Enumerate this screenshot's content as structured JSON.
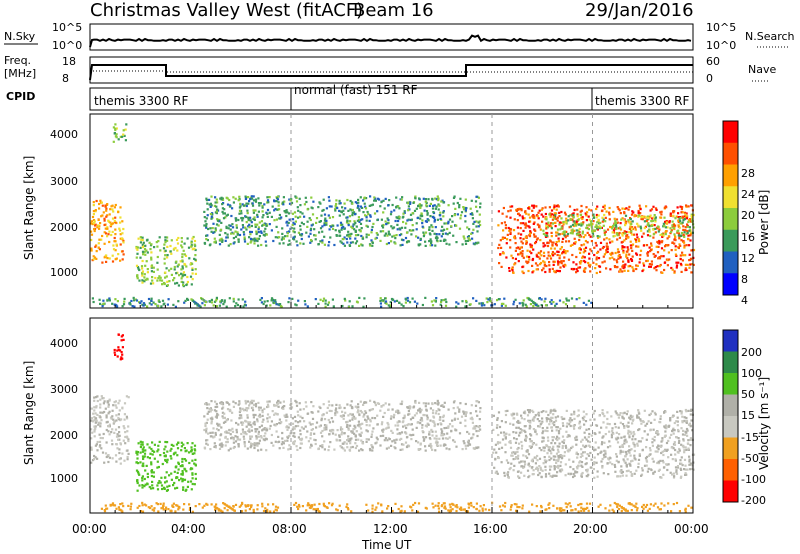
{
  "header": {
    "title": "Christmas Valley West (fitACF)",
    "beam": "Beam 16",
    "date": "29/Jan/2016"
  },
  "top_panels": {
    "nsky_label": "N.Sky",
    "nsky_ticks": [
      "10^5",
      "10^0"
    ],
    "nsky_right_ticks": [
      "10^5",
      "10^0"
    ],
    "nsearch_label": "N.Search",
    "freq_label": "Freq.",
    "freq_unit": "[MHz]",
    "freq_ticks": [
      "18",
      "8"
    ],
    "nave_ticks": [
      "60",
      "0"
    ],
    "nave_label": "Nave",
    "cpid_label": "CPID",
    "cpid_segments": [
      {
        "label": "themis 3300 RF",
        "start_h": 0,
        "end_h": 8
      },
      {
        "label": "normal (fast) 151 RF",
        "start_h": 8,
        "end_h": 20
      },
      {
        "label": "themis 3300 RF",
        "start_h": 20,
        "end_h": 24
      }
    ]
  },
  "x_axis": {
    "label": "Time UT",
    "ticks": [
      "00:00",
      "04:00",
      "08:00",
      "12:00",
      "16:00",
      "20:00",
      "00:00"
    ]
  },
  "power_panel": {
    "ylabel": "Slant Range [km]",
    "yticks": [
      "4000",
      "3000",
      "2000",
      "1000"
    ],
    "colorbar_label": "Power [dB]",
    "colorbar_ticks": [
      "28",
      "24",
      "20",
      "16",
      "12",
      "8",
      "4"
    ],
    "colors": [
      "#0000ff",
      "#2060c0",
      "#3a9a5a",
      "#8ccc3c",
      "#f0e030",
      "#ffa000",
      "#ff5000",
      "#ff0000"
    ]
  },
  "velocity_panel": {
    "ylabel": "Slant Range [km]",
    "yticks": [
      "4000",
      "3000",
      "2000",
      "1000"
    ],
    "colorbar_label": "Velocity [m s⁻¹]",
    "colorbar_ticks": [
      "200",
      "100",
      "50",
      "15",
      "-15",
      "-50",
      "-100",
      "-200"
    ],
    "colors": [
      "#2030c0",
      "#2e8a4a",
      "#50c020",
      "#b0b0a8",
      "#c8c8c0",
      "#f0a020",
      "#ff6000",
      "#ff0000"
    ]
  },
  "chart_data": {
    "type": "heatmap",
    "x_range_hours": [
      0,
      24
    ],
    "y_range_km": [
      200,
      4500
    ],
    "power_regions": [
      {
        "t0": 0.0,
        "t1": 1.3,
        "r0": 1200,
        "r1": 2600,
        "value_db": 22
      },
      {
        "t0": 0.9,
        "t1": 1.4,
        "r0": 3900,
        "r1": 4300,
        "value_db": 14
      },
      {
        "t0": 1.8,
        "t1": 4.2,
        "r0": 700,
        "r1": 1800,
        "value_db": 14
      },
      {
        "t0": 4.5,
        "t1": 15.5,
        "r0": 1600,
        "r1": 2700,
        "value_db": 8
      },
      {
        "t0": 0.0,
        "t1": 20.0,
        "r0": 250,
        "r1": 450,
        "value_db": 8
      },
      {
        "t0": 16.2,
        "t1": 24.0,
        "r0": 1000,
        "r1": 2500,
        "value_db": 24
      },
      {
        "t0": 18.0,
        "t1": 24.0,
        "r0": 1800,
        "r1": 2300,
        "value_db": 12
      }
    ],
    "velocity_regions": [
      {
        "t0": 0.0,
        "t1": 1.5,
        "r0": 1300,
        "r1": 2800,
        "value_ms": 0
      },
      {
        "t0": 0.9,
        "t1": 1.3,
        "r0": 3600,
        "r1": 4200,
        "value_ms": -150
      },
      {
        "t0": 1.8,
        "t1": 4.2,
        "r0": 700,
        "r1": 1800,
        "value_ms": 40
      },
      {
        "t0": 4.5,
        "t1": 15.5,
        "r0": 1600,
        "r1": 2700,
        "value_ms": 0
      },
      {
        "t0": 0.0,
        "t1": 24.0,
        "r0": 250,
        "r1": 450,
        "value_ms": -60
      },
      {
        "t0": 16.0,
        "t1": 24.0,
        "r0": 1000,
        "r1": 2500,
        "value_ms": 0
      }
    ]
  }
}
